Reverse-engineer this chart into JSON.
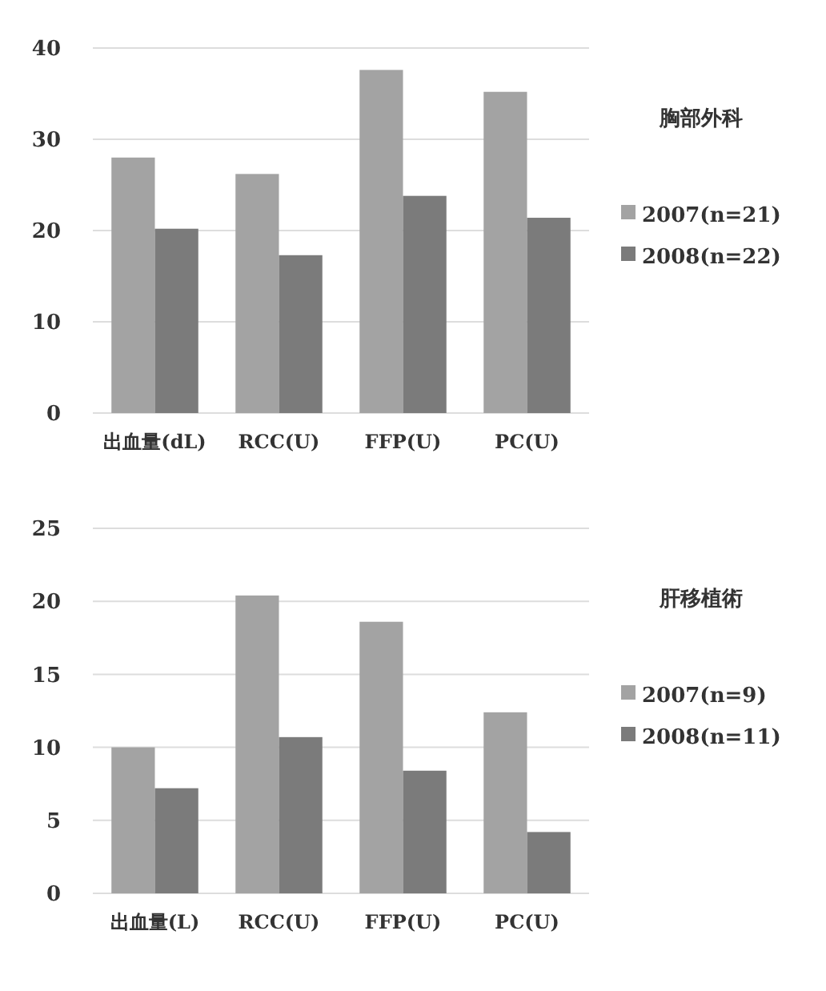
{
  "chart_data": [
    {
      "type": "bar",
      "legend_title": "胸部外科",
      "categories": [
        "出血量(dL)",
        "RCC(U)",
        "FFP(U)",
        "PC(U)"
      ],
      "series": [
        {
          "name": "2007(n=21)",
          "color": "#a3a3a3",
          "values": [
            28.0,
            26.2,
            37.6,
            35.2
          ]
        },
        {
          "name": "2008(n=22)",
          "color": "#7b7b7b",
          "values": [
            20.2,
            17.3,
            23.8,
            21.4
          ]
        }
      ],
      "ylim": [
        0,
        40
      ],
      "yticks": [
        0,
        10,
        20,
        30,
        40
      ],
      "grid": "y",
      "legend": "right"
    },
    {
      "type": "bar",
      "legend_title": "肝移植術",
      "categories": [
        "出血量(L)",
        "RCC(U)",
        "FFP(U)",
        "PC(U)"
      ],
      "series": [
        {
          "name": "2007(n=9)",
          "color": "#a3a3a3",
          "values": [
            10.0,
            20.4,
            18.6,
            12.4
          ]
        },
        {
          "name": "2008(n=11)",
          "color": "#7b7b7b",
          "values": [
            7.2,
            10.7,
            8.4,
            4.2
          ]
        }
      ],
      "ylim": [
        0,
        25
      ],
      "yticks": [
        0,
        5,
        10,
        15,
        20,
        25
      ],
      "grid": "y",
      "legend": "right"
    }
  ]
}
